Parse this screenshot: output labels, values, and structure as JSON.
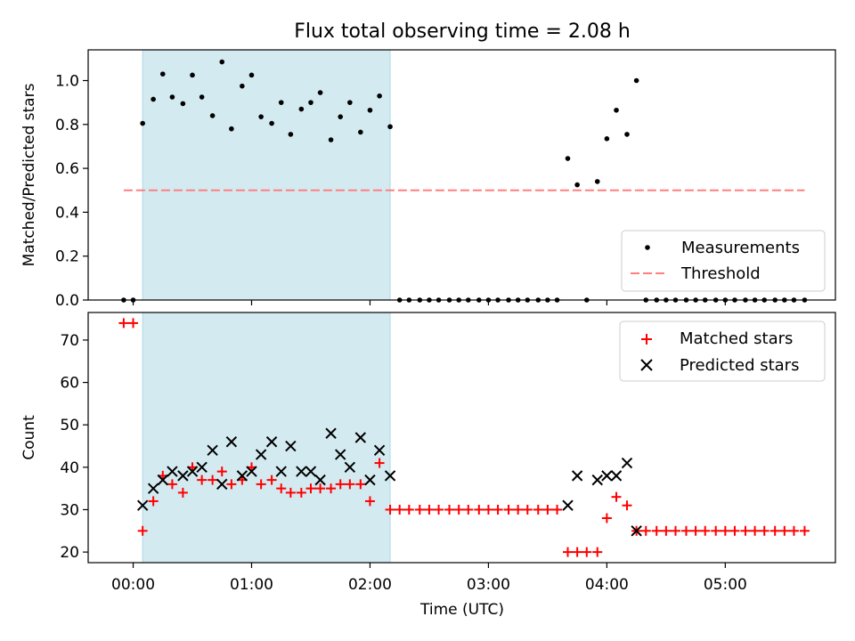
{
  "chart_data": [
    {
      "type": "scatter",
      "title": "Flux total observing time = 2.08 h",
      "xlabel": "",
      "ylabel": "Matched/Predicted stars",
      "xlim_hours": [
        -0.38,
        5.93
      ],
      "ylim": [
        0,
        1.14
      ],
      "y_ticks": [
        0.0,
        0.2,
        0.4,
        0.6,
        0.8,
        1.0
      ],
      "y_tick_labels": [
        "0.0",
        "0.2",
        "0.4",
        "0.6",
        "0.8",
        "1.0"
      ],
      "shaded_span_hours": [
        0.08,
        2.17
      ],
      "shaded_color": "#d4eaf1",
      "legend_position": "lower right",
      "series": [
        {
          "name": "Measurements",
          "marker": "dot",
          "color": "#000000",
          "points": [
            [
              -0.08,
              0.0
            ],
            [
              0.0,
              0.0
            ],
            [
              0.08,
              0.805
            ],
            [
              0.17,
              0.915
            ],
            [
              0.25,
              1.03
            ],
            [
              0.33,
              0.925
            ],
            [
              0.42,
              0.895
            ],
            [
              0.5,
              1.025
            ],
            [
              0.58,
              0.925
            ],
            [
              0.67,
              0.84
            ],
            [
              0.75,
              1.085
            ],
            [
              0.83,
              0.78
            ],
            [
              0.92,
              0.975
            ],
            [
              1.0,
              1.025
            ],
            [
              1.08,
              0.835
            ],
            [
              1.17,
              0.805
            ],
            [
              1.25,
              0.9
            ],
            [
              1.33,
              0.755
            ],
            [
              1.42,
              0.87
            ],
            [
              1.5,
              0.9
            ],
            [
              1.58,
              0.945
            ],
            [
              1.67,
              0.73
            ],
            [
              1.75,
              0.835
            ],
            [
              1.83,
              0.9
            ],
            [
              1.92,
              0.765
            ],
            [
              2.0,
              0.865
            ],
            [
              2.08,
              0.93
            ],
            [
              2.17,
              0.79
            ],
            [
              2.25,
              0.0
            ],
            [
              2.33,
              0.0
            ],
            [
              2.42,
              0.0
            ],
            [
              2.5,
              0.0
            ],
            [
              2.58,
              0.0
            ],
            [
              2.67,
              0.0
            ],
            [
              2.75,
              0.0
            ],
            [
              2.83,
              0.0
            ],
            [
              2.92,
              0.0
            ],
            [
              3.0,
              0.0
            ],
            [
              3.08,
              0.0
            ],
            [
              3.17,
              0.0
            ],
            [
              3.25,
              0.0
            ],
            [
              3.33,
              0.0
            ],
            [
              3.42,
              0.0
            ],
            [
              3.5,
              0.0
            ],
            [
              3.58,
              0.0
            ],
            [
              3.67,
              0.645
            ],
            [
              3.75,
              0.525
            ],
            [
              3.83,
              0.0
            ],
            [
              3.92,
              0.54
            ],
            [
              4.0,
              0.735
            ],
            [
              4.08,
              0.865
            ],
            [
              4.17,
              0.755
            ],
            [
              4.25,
              1.0
            ],
            [
              4.33,
              0.0
            ],
            [
              4.42,
              0.0
            ],
            [
              4.5,
              0.0
            ],
            [
              4.58,
              0.0
            ],
            [
              4.67,
              0.0
            ],
            [
              4.75,
              0.0
            ],
            [
              4.83,
              0.0
            ],
            [
              4.92,
              0.0
            ],
            [
              5.0,
              0.0
            ],
            [
              5.08,
              0.0
            ],
            [
              5.17,
              0.0
            ],
            [
              5.25,
              0.0
            ],
            [
              5.33,
              0.0
            ],
            [
              5.42,
              0.0
            ],
            [
              5.5,
              0.0
            ],
            [
              5.58,
              0.0
            ],
            [
              5.67,
              0.0
            ]
          ]
        },
        {
          "name": "Threshold",
          "line": "dashed",
          "color": "#ff7f7f",
          "points": [
            [
              -0.08,
              0.5
            ],
            [
              5.67,
              0.5
            ]
          ]
        }
      ]
    },
    {
      "type": "scatter",
      "title": "",
      "xlabel": "Time (UTC)",
      "ylabel": "Count",
      "xlim_hours": [
        -0.38,
        5.93
      ],
      "ylim": [
        17.5,
        76.5
      ],
      "y_ticks": [
        20,
        30,
        40,
        50,
        60,
        70
      ],
      "y_tick_labels": [
        "20",
        "30",
        "40",
        "50",
        "60",
        "70"
      ],
      "x_ticks_hours": [
        0,
        1,
        2,
        3,
        4,
        5
      ],
      "x_tick_labels": [
        "00:00",
        "01:00",
        "02:00",
        "03:00",
        "04:00",
        "05:00"
      ],
      "shaded_span_hours": [
        0.08,
        2.17
      ],
      "shaded_color": "#d4eaf1",
      "legend_position": "upper right",
      "series": [
        {
          "name": "Matched stars",
          "marker": "plus",
          "color": "#ff0000",
          "points": [
            [
              -0.08,
              74
            ],
            [
              0.0,
              74
            ],
            [
              0.08,
              25
            ],
            [
              0.17,
              32
            ],
            [
              0.25,
              38
            ],
            [
              0.33,
              36
            ],
            [
              0.42,
              34
            ],
            [
              0.5,
              40
            ],
            [
              0.58,
              37
            ],
            [
              0.67,
              37
            ],
            [
              0.75,
              39
            ],
            [
              0.83,
              36
            ],
            [
              0.92,
              37
            ],
            [
              1.0,
              40
            ],
            [
              1.08,
              36
            ],
            [
              1.17,
              37
            ],
            [
              1.25,
              35
            ],
            [
              1.33,
              34
            ],
            [
              1.42,
              34
            ],
            [
              1.5,
              35
            ],
            [
              1.58,
              35
            ],
            [
              1.67,
              35
            ],
            [
              1.75,
              36
            ],
            [
              1.83,
              36
            ],
            [
              1.92,
              36
            ],
            [
              2.0,
              32
            ],
            [
              2.08,
              41
            ],
            [
              2.17,
              30
            ],
            [
              2.25,
              30
            ],
            [
              2.33,
              30
            ],
            [
              2.42,
              30
            ],
            [
              2.5,
              30
            ],
            [
              2.58,
              30
            ],
            [
              2.67,
              30
            ],
            [
              2.75,
              30
            ],
            [
              2.83,
              30
            ],
            [
              2.92,
              30
            ],
            [
              3.0,
              30
            ],
            [
              3.08,
              30
            ],
            [
              3.17,
              30
            ],
            [
              3.25,
              30
            ],
            [
              3.33,
              30
            ],
            [
              3.42,
              30
            ],
            [
              3.5,
              30
            ],
            [
              3.58,
              30
            ],
            [
              3.67,
              20
            ],
            [
              3.75,
              20
            ],
            [
              3.83,
              20
            ],
            [
              3.92,
              20
            ],
            [
              4.0,
              28
            ],
            [
              4.08,
              33
            ],
            [
              4.17,
              31
            ],
            [
              4.25,
              25
            ],
            [
              4.33,
              25
            ],
            [
              4.42,
              25
            ],
            [
              4.5,
              25
            ],
            [
              4.58,
              25
            ],
            [
              4.67,
              25
            ],
            [
              4.75,
              25
            ],
            [
              4.83,
              25
            ],
            [
              4.92,
              25
            ],
            [
              5.0,
              25
            ],
            [
              5.08,
              25
            ],
            [
              5.17,
              25
            ],
            [
              5.25,
              25
            ],
            [
              5.33,
              25
            ],
            [
              5.42,
              25
            ],
            [
              5.5,
              25
            ],
            [
              5.58,
              25
            ],
            [
              5.67,
              25
            ]
          ]
        },
        {
          "name": "Predicted stars",
          "marker": "x",
          "color": "#000000",
          "points": [
            [
              0.08,
              31
            ],
            [
              0.17,
              35
            ],
            [
              0.25,
              37
            ],
            [
              0.33,
              39
            ],
            [
              0.42,
              38
            ],
            [
              0.5,
              39
            ],
            [
              0.58,
              40
            ],
            [
              0.67,
              44
            ],
            [
              0.75,
              36
            ],
            [
              0.83,
              46
            ],
            [
              0.92,
              38
            ],
            [
              1.0,
              39
            ],
            [
              1.08,
              43
            ],
            [
              1.17,
              46
            ],
            [
              1.25,
              39
            ],
            [
              1.33,
              45
            ],
            [
              1.42,
              39
            ],
            [
              1.5,
              39
            ],
            [
              1.58,
              37
            ],
            [
              1.67,
              48
            ],
            [
              1.75,
              43
            ],
            [
              1.83,
              40
            ],
            [
              1.92,
              47
            ],
            [
              2.0,
              37
            ],
            [
              2.08,
              44
            ],
            [
              2.17,
              38
            ],
            [
              3.67,
              31
            ],
            [
              3.75,
              38
            ],
            [
              3.92,
              37
            ],
            [
              4.0,
              38
            ],
            [
              4.08,
              38
            ],
            [
              4.17,
              41
            ],
            [
              4.25,
              25
            ]
          ]
        }
      ]
    }
  ]
}
